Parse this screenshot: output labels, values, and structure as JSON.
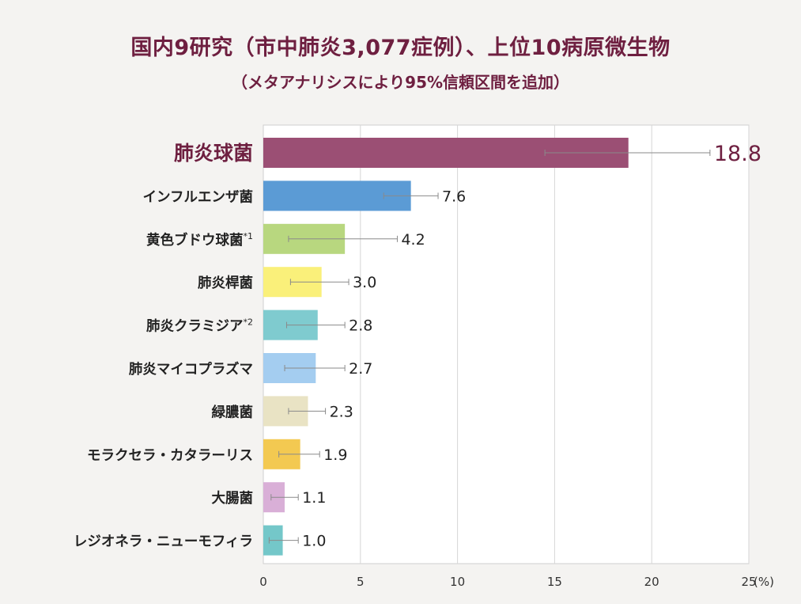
{
  "chart_data": {
    "type": "bar",
    "orientation": "horizontal",
    "title": "国内9研究（市中肺炎3,077症例）、上位10病原微生物",
    "subtitle": "（メタアナリシスにより95%信頼区間を追加）",
    "xlabel": "(%)",
    "xlim": [
      0,
      25
    ],
    "x_ticks": [
      0,
      5,
      10,
      15,
      20,
      25
    ],
    "grid": true,
    "categories": [
      "肺炎球菌",
      "インフルエンザ菌",
      "黄色ブドウ球菌",
      "肺炎桿菌",
      "肺炎クラミジア",
      "肺炎マイコプラズマ",
      "緑膿菌",
      "モラクセラ・カタラーリス",
      "大腸菌",
      "レジオネラ・ニューモフィラ"
    ],
    "footnote_marks": [
      "",
      "",
      "*1",
      "",
      "*2",
      "",
      "",
      "",
      "",
      ""
    ],
    "values": [
      18.8,
      7.6,
      4.2,
      3.0,
      2.8,
      2.7,
      2.3,
      1.9,
      1.1,
      1.0
    ],
    "value_labels": [
      "18.8",
      "7.6",
      "4.2",
      "3.0",
      "2.8",
      "2.7",
      "2.3",
      "1.9",
      "1.1",
      "1.0"
    ],
    "ci_low": [
      14.5,
      6.2,
      1.3,
      1.4,
      1.2,
      1.1,
      1.3,
      0.8,
      0.4,
      0.3
    ],
    "ci_high": [
      23.0,
      9.0,
      6.9,
      4.4,
      4.2,
      4.2,
      3.2,
      2.9,
      1.8,
      1.8
    ],
    "colors": [
      "#9b4f74",
      "#5b9bd5",
      "#b8d77f",
      "#faf07a",
      "#7fcbcf",
      "#a4cdf0",
      "#e9e3c4",
      "#f3c951",
      "#d9afd7",
      "#74c7c9"
    ],
    "highlight_color": "#6e1f40"
  }
}
